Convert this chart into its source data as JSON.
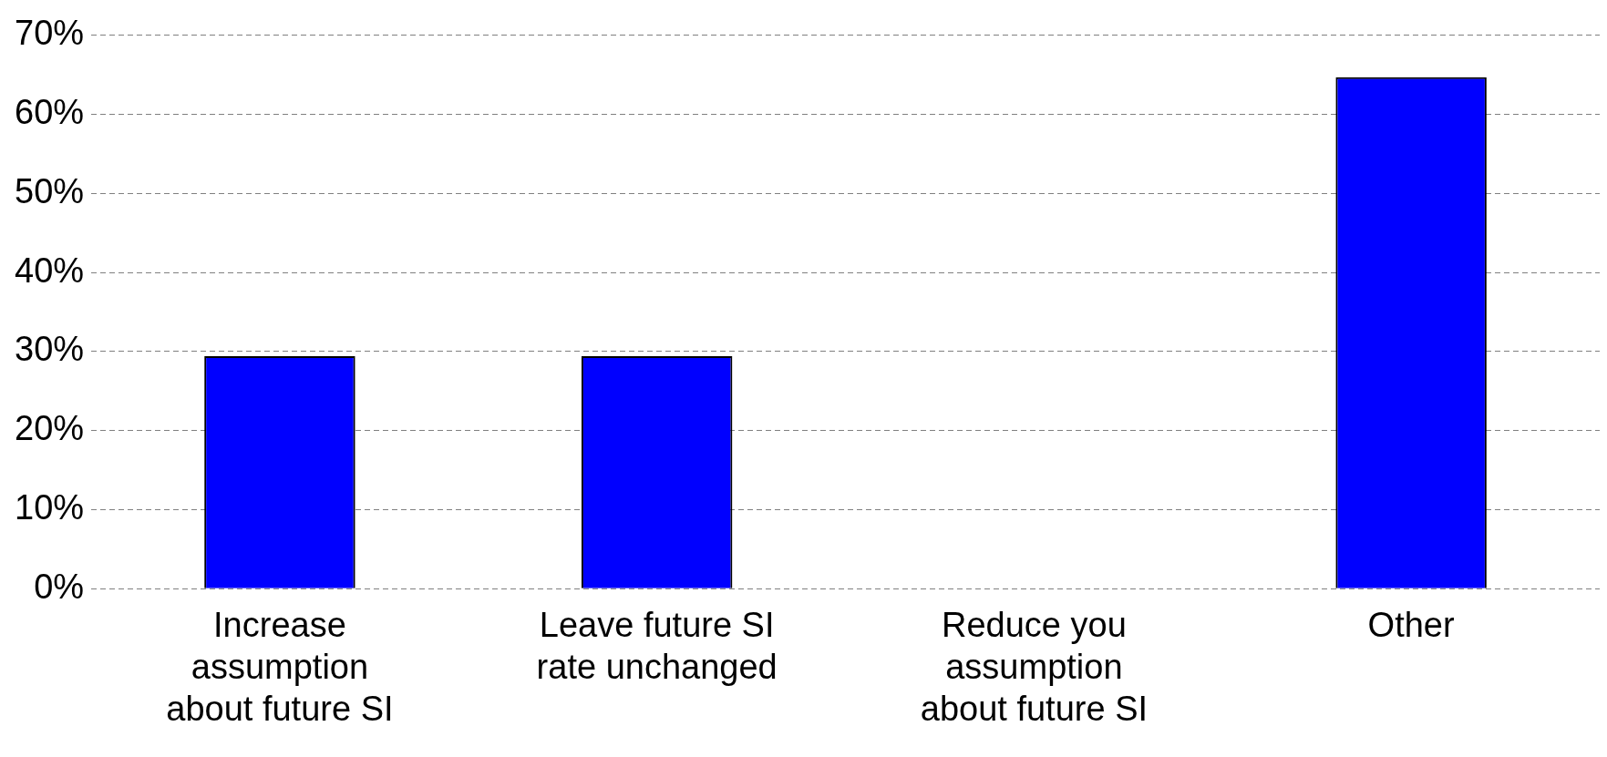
{
  "chart_data": {
    "type": "bar",
    "categories": [
      "Increase assumption about future SI",
      "Leave future SI rate unchanged",
      "Reduce you assumption about future SI",
      "Other"
    ],
    "values": [
      29.4,
      29.4,
      0,
      64.7
    ],
    "color": "#0000ff",
    "ylim": [
      0,
      70
    ],
    "yticks": [
      {
        "value": 0,
        "label": "0%"
      },
      {
        "value": 10,
        "label": "10%"
      },
      {
        "value": 20,
        "label": "20%"
      },
      {
        "value": 30,
        "label": "30%"
      },
      {
        "value": 40,
        "label": "40%"
      },
      {
        "value": 50,
        "label": "50%"
      },
      {
        "value": 60,
        "label": "60%"
      },
      {
        "value": 70,
        "label": "70%"
      }
    ],
    "grid": "y",
    "legend": false
  }
}
